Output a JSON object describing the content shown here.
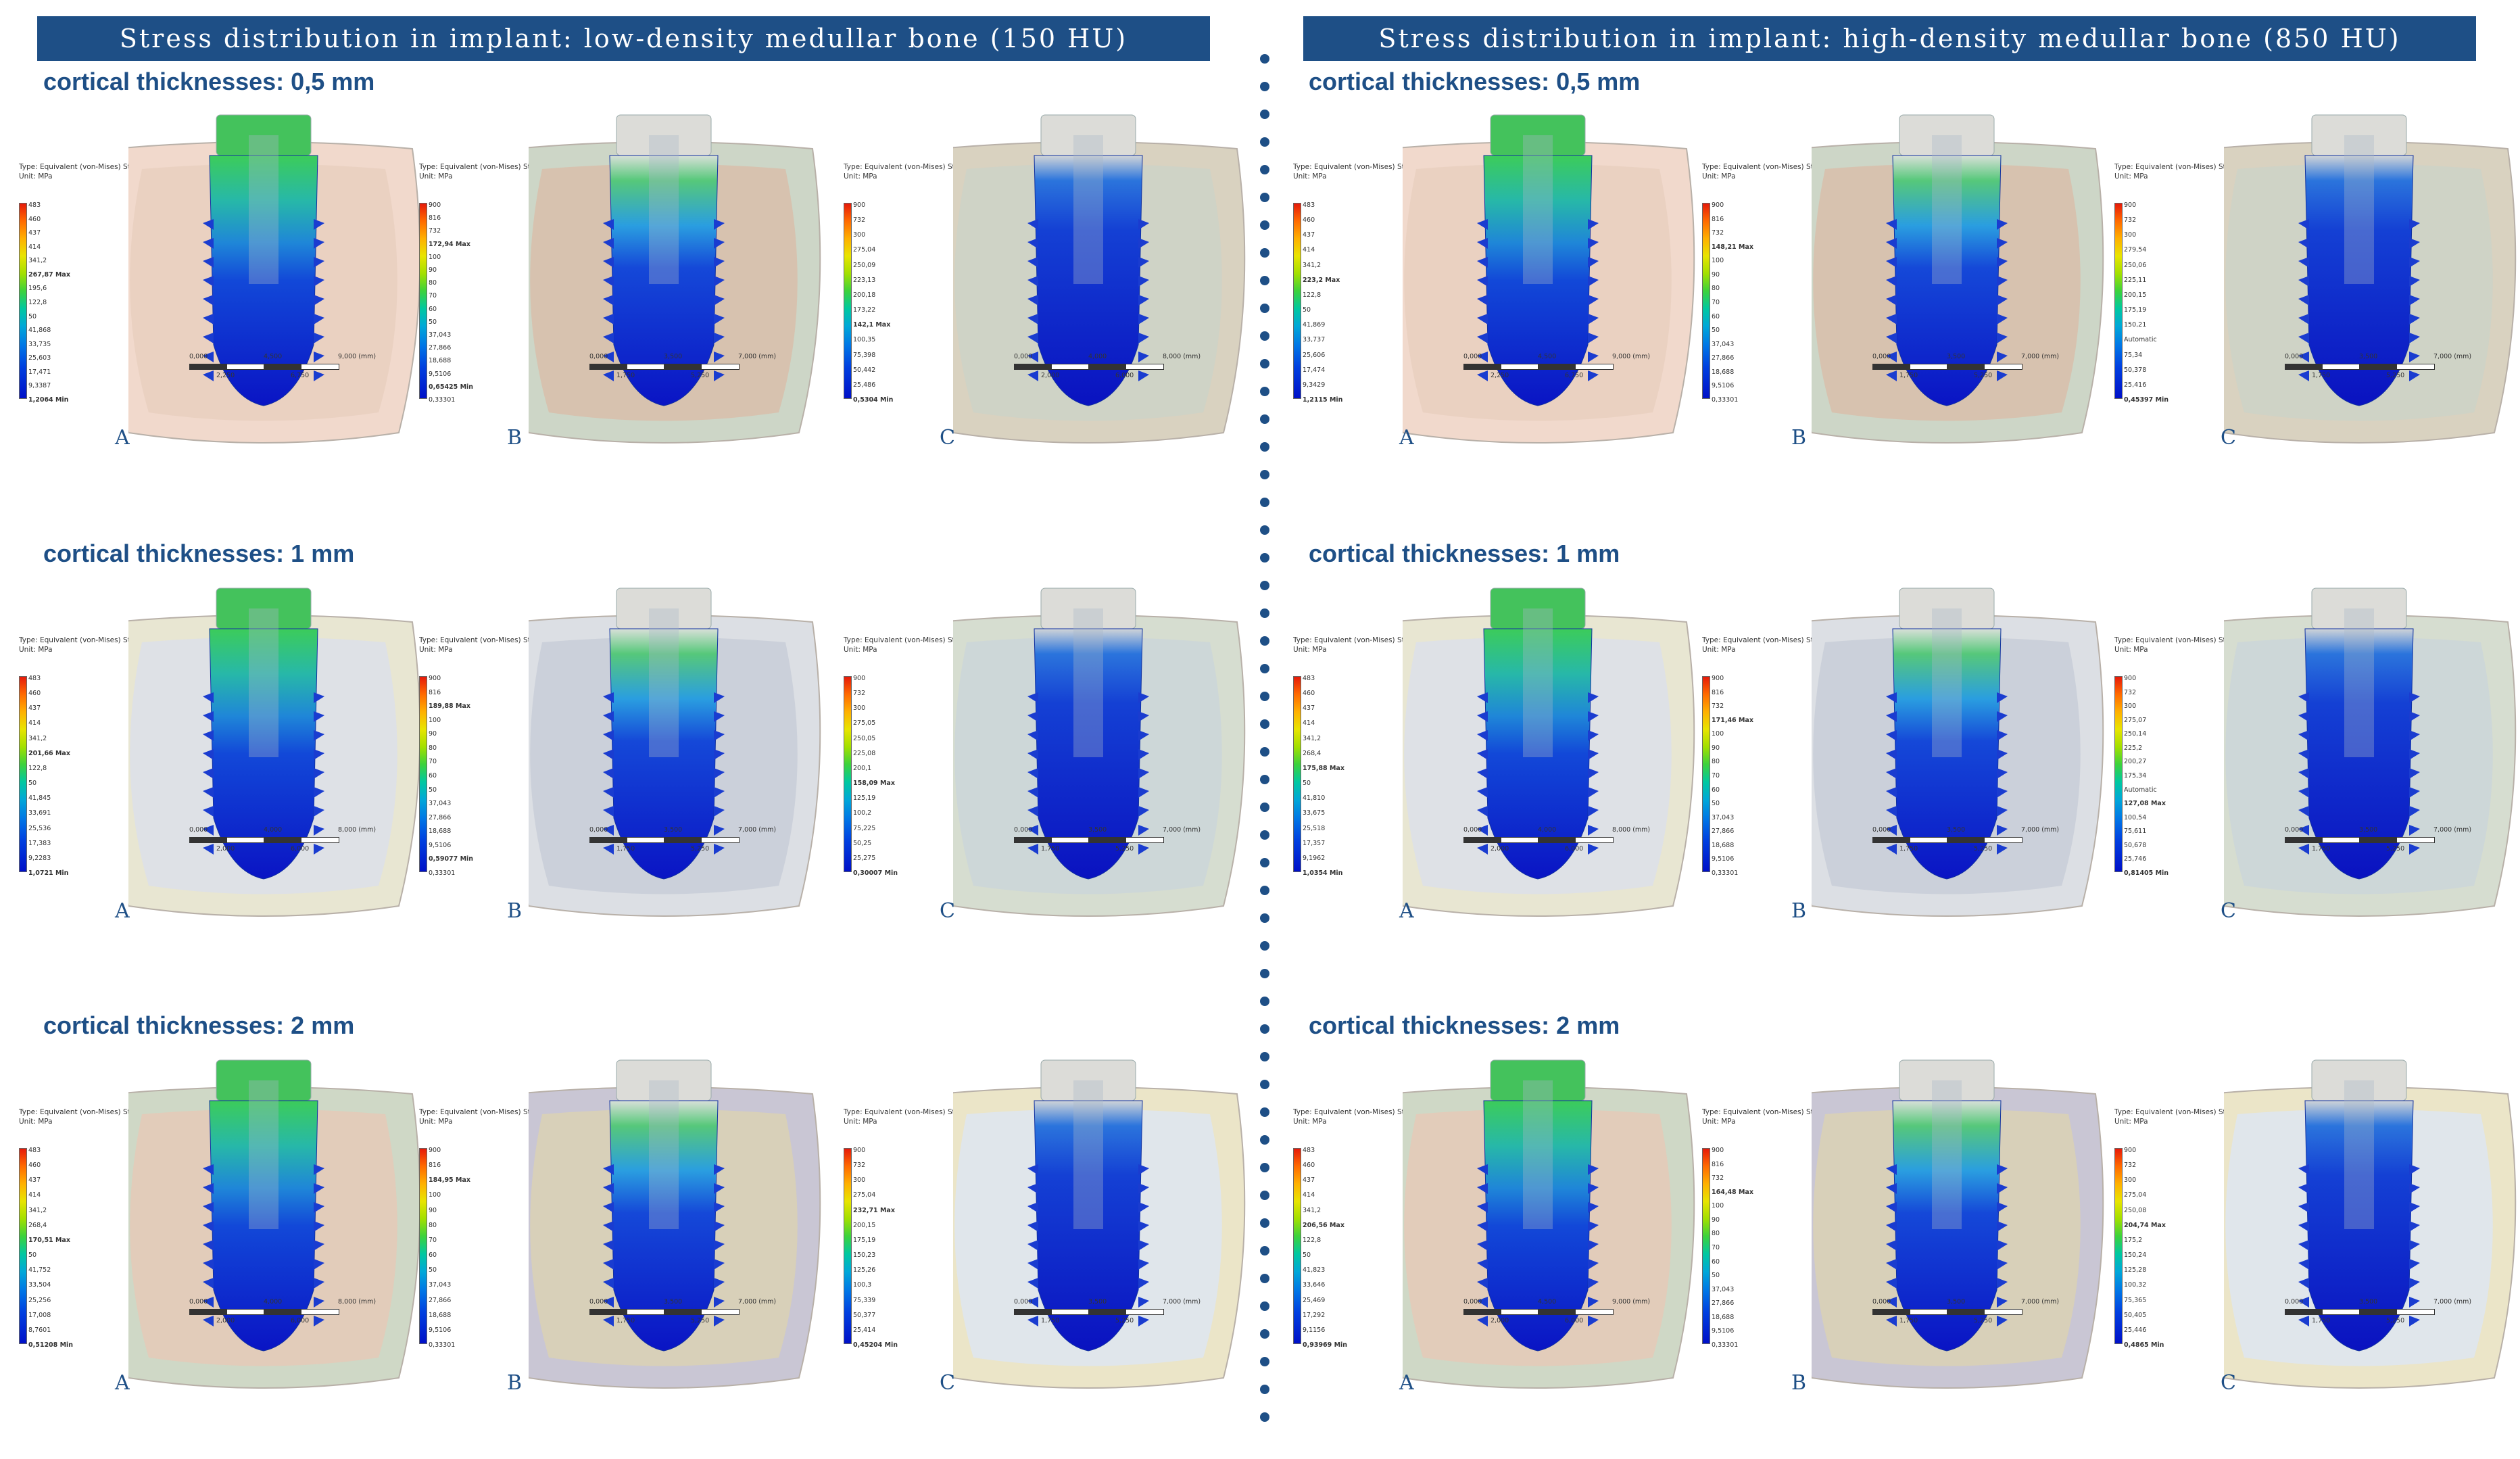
{
  "colors": {
    "accent": "#1e4f86",
    "max_red": "#e51a0a",
    "min_blue": "#0010c8"
  },
  "header": {
    "left_title": "Stress distribution in implant: low-density medullar bone (150 HU)",
    "right_title": "Stress distribution in implant: high-density medullar bone (850 HU)"
  },
  "rows": {
    "row1_title": "cortical thicknesses: 0,5 mm",
    "row2_title": "cortical thicknesses: 1 mm",
    "row3_title": "cortical thicknesses: 2 mm"
  },
  "letters": {
    "a": "A",
    "b": "B",
    "c": "C"
  },
  "legend_title": "Type: Equivalent (von-Mises) Stress",
  "legend_unit": "Unit: MPa",
  "panels": {
    "L1A": {
      "ticks": [
        "483",
        "460",
        "437",
        "414",
        "341,2",
        "267,87 Max",
        "195,6",
        "122,8",
        "50",
        "41,868",
        "33,735",
        "25,603",
        "17,471",
        "9,3387",
        "1,2064 Min"
      ],
      "scale_top": [
        "0,000",
        "4,500",
        "9,000 (mm)"
      ],
      "scale_bot": [
        "2,250",
        "6,750"
      ]
    },
    "L1B": {
      "ticks": [
        "900",
        "816",
        "732",
        "172,94 Max",
        "100",
        "90",
        "80",
        "70",
        "60",
        "50",
        "37,043",
        "27,866",
        "18,688",
        "9,5106",
        "0,65425 Min",
        "0,33301"
      ],
      "scale_top": [
        "0,000",
        "3,500",
        "7,000 (mm)"
      ],
      "scale_bot": [
        "1,750",
        "5,250"
      ]
    },
    "L1C": {
      "ticks": [
        "900",
        "732",
        "300",
        "275,04",
        "250,09",
        "223,13",
        "200,18",
        "173,22",
        "142,1 Max",
        "100,35",
        "75,398",
        "50,442",
        "25,486",
        "0,5304 Min"
      ],
      "scale_top": [
        "0,000",
        "4,000",
        "8,000 (mm)"
      ],
      "scale_bot": [
        "2,000",
        "6,000"
      ]
    },
    "R1A": {
      "ticks": [
        "483",
        "460",
        "437",
        "414",
        "341,2",
        "223,2 Max",
        "122,8",
        "50",
        "41,869",
        "33,737",
        "25,606",
        "17,474",
        "9,3429",
        "1,2115 Min"
      ],
      "scale_top": [
        "0,000",
        "4,500",
        "9,000 (mm)"
      ],
      "scale_bot": [
        "2,250",
        "6,750"
      ]
    },
    "R1B": {
      "ticks": [
        "900",
        "816",
        "732",
        "148,21 Max",
        "100",
        "90",
        "80",
        "70",
        "60",
        "50",
        "37,043",
        "27,866",
        "18,688",
        "9,5106",
        "0,33301"
      ],
      "scale_top": [
        "0,000",
        "3,500",
        "7,000 (mm)"
      ],
      "scale_bot": [
        "1,750",
        "5,250"
      ]
    },
    "R1C": {
      "ticks": [
        "900",
        "732",
        "300",
        "279,54",
        "250,06",
        "225,11",
        "200,15",
        "175,19",
        "150,21",
        "Automatic",
        "75,34",
        "50,378",
        "25,416",
        "0,45397 Min"
      ],
      "scale_top": [
        "0,000",
        "3,500",
        "7,000 (mm)"
      ],
      "scale_bot": [
        "1,750",
        "5,250"
      ]
    },
    "L2A": {
      "ticks": [
        "483",
        "460",
        "437",
        "414",
        "341,2",
        "201,66 Max",
        "122,8",
        "50",
        "41,845",
        "33,691",
        "25,536",
        "17,383",
        "9,2283",
        "1,0721 Min"
      ],
      "scale_top": [
        "0,000",
        "4,000",
        "8,000 (mm)"
      ],
      "scale_bot": [
        "2,000",
        "6,000"
      ]
    },
    "L2B": {
      "ticks": [
        "900",
        "816",
        "189,88 Max",
        "100",
        "90",
        "80",
        "70",
        "60",
        "50",
        "37,043",
        "27,866",
        "18,688",
        "9,5106",
        "0,59077 Min",
        "0,33301"
      ],
      "scale_top": [
        "0,000",
        "3,500",
        "7,000 (mm)"
      ],
      "scale_bot": [
        "1,750",
        "5,250"
      ]
    },
    "L2C": {
      "ticks": [
        "900",
        "732",
        "300",
        "275,05",
        "250,05",
        "225,08",
        "200,1",
        "158,09 Max",
        "125,19",
        "100,2",
        "75,225",
        "50,25",
        "25,275",
        "0,30007 Min"
      ],
      "scale_top": [
        "0,000",
        "3,500",
        "7,000 (mm)"
      ],
      "scale_bot": [
        "1,750",
        "5,250"
      ]
    },
    "R2A": {
      "ticks": [
        "483",
        "460",
        "437",
        "414",
        "341,2",
        "268,4",
        "175,88 Max",
        "50",
        "41,810",
        "33,675",
        "25,518",
        "17,357",
        "9,1962",
        "1,0354 Min"
      ],
      "scale_top": [
        "0,000",
        "4,000",
        "8,000 (mm)"
      ],
      "scale_bot": [
        "2,000",
        "6,000"
      ]
    },
    "R2B": {
      "ticks": [
        "900",
        "816",
        "732",
        "171,46 Max",
        "100",
        "90",
        "80",
        "70",
        "60",
        "50",
        "37,043",
        "27,866",
        "18,688",
        "9,5106",
        "0,33301"
      ],
      "scale_top": [
        "0,000",
        "3,500",
        "7,000 (mm)"
      ],
      "scale_bot": [
        "1,750",
        "5,250"
      ]
    },
    "R2C": {
      "ticks": [
        "900",
        "732",
        "300",
        "275,07",
        "250,14",
        "225,2",
        "200,27",
        "175,34",
        "Automatic",
        "127,08 Max",
        "100,54",
        "75,611",
        "50,678",
        "25,746",
        "0,81405 Min"
      ],
      "scale_top": [
        "0,000",
        "3,500",
        "7,000 (mm)"
      ],
      "scale_bot": [
        "1,750",
        "5,250"
      ]
    },
    "L3A": {
      "ticks": [
        "483",
        "460",
        "437",
        "414",
        "341,2",
        "268,4",
        "170,51 Max",
        "50",
        "41,752",
        "33,504",
        "25,256",
        "17,008",
        "8,7601",
        "0,51208 Min"
      ],
      "scale_top": [
        "0,000",
        "4,000",
        "8,000 (mm)"
      ],
      "scale_bot": [
        "2,000",
        "6,000"
      ]
    },
    "L3B": {
      "ticks": [
        "900",
        "816",
        "184,95 Max",
        "100",
        "90",
        "80",
        "70",
        "60",
        "50",
        "37,043",
        "27,866",
        "18,688",
        "9,5106",
        "0,33301"
      ],
      "scale_top": [
        "0,000",
        "3,500",
        "7,000 (mm)"
      ],
      "scale_bot": [
        "1,750",
        "5,250"
      ]
    },
    "L3C": {
      "ticks": [
        "900",
        "732",
        "300",
        "275,04",
        "232,71 Max",
        "200,15",
        "175,19",
        "150,23",
        "125,26",
        "100,3",
        "75,339",
        "50,377",
        "25,414",
        "0,45204 Min"
      ],
      "scale_top": [
        "0,000",
        "3,500",
        "7,000 (mm)"
      ],
      "scale_bot": [
        "1,750",
        "5,250"
      ]
    },
    "R3A": {
      "ticks": [
        "483",
        "460",
        "437",
        "414",
        "341,2",
        "206,56 Max",
        "122,8",
        "50",
        "41,823",
        "33,646",
        "25,469",
        "17,292",
        "9,1156",
        "0,93969 Min"
      ],
      "scale_top": [
        "0,000",
        "4,500",
        "9,000 (mm)"
      ],
      "scale_bot": [
        "2,000",
        "6,000"
      ]
    },
    "R3B": {
      "ticks": [
        "900",
        "816",
        "732",
        "164,48 Max",
        "100",
        "90",
        "80",
        "70",
        "60",
        "50",
        "37,043",
        "27,866",
        "18,688",
        "9,5106",
        "0,33301"
      ],
      "scale_top": [
        "0,000",
        "3,500",
        "7,000 (mm)"
      ],
      "scale_bot": [
        "1,750",
        "5,250"
      ]
    },
    "R3C": {
      "ticks": [
        "900",
        "732",
        "300",
        "275,04",
        "250,08",
        "204,74 Max",
        "175,2",
        "150,24",
        "125,28",
        "100,32",
        "75,365",
        "50,405",
        "25,446",
        "0,4865 Min"
      ],
      "scale_top": [
        "0,000",
        "3,500",
        "7,000 (mm)"
      ],
      "scale_bot": [
        "1,750",
        "5,250"
      ]
    }
  }
}
